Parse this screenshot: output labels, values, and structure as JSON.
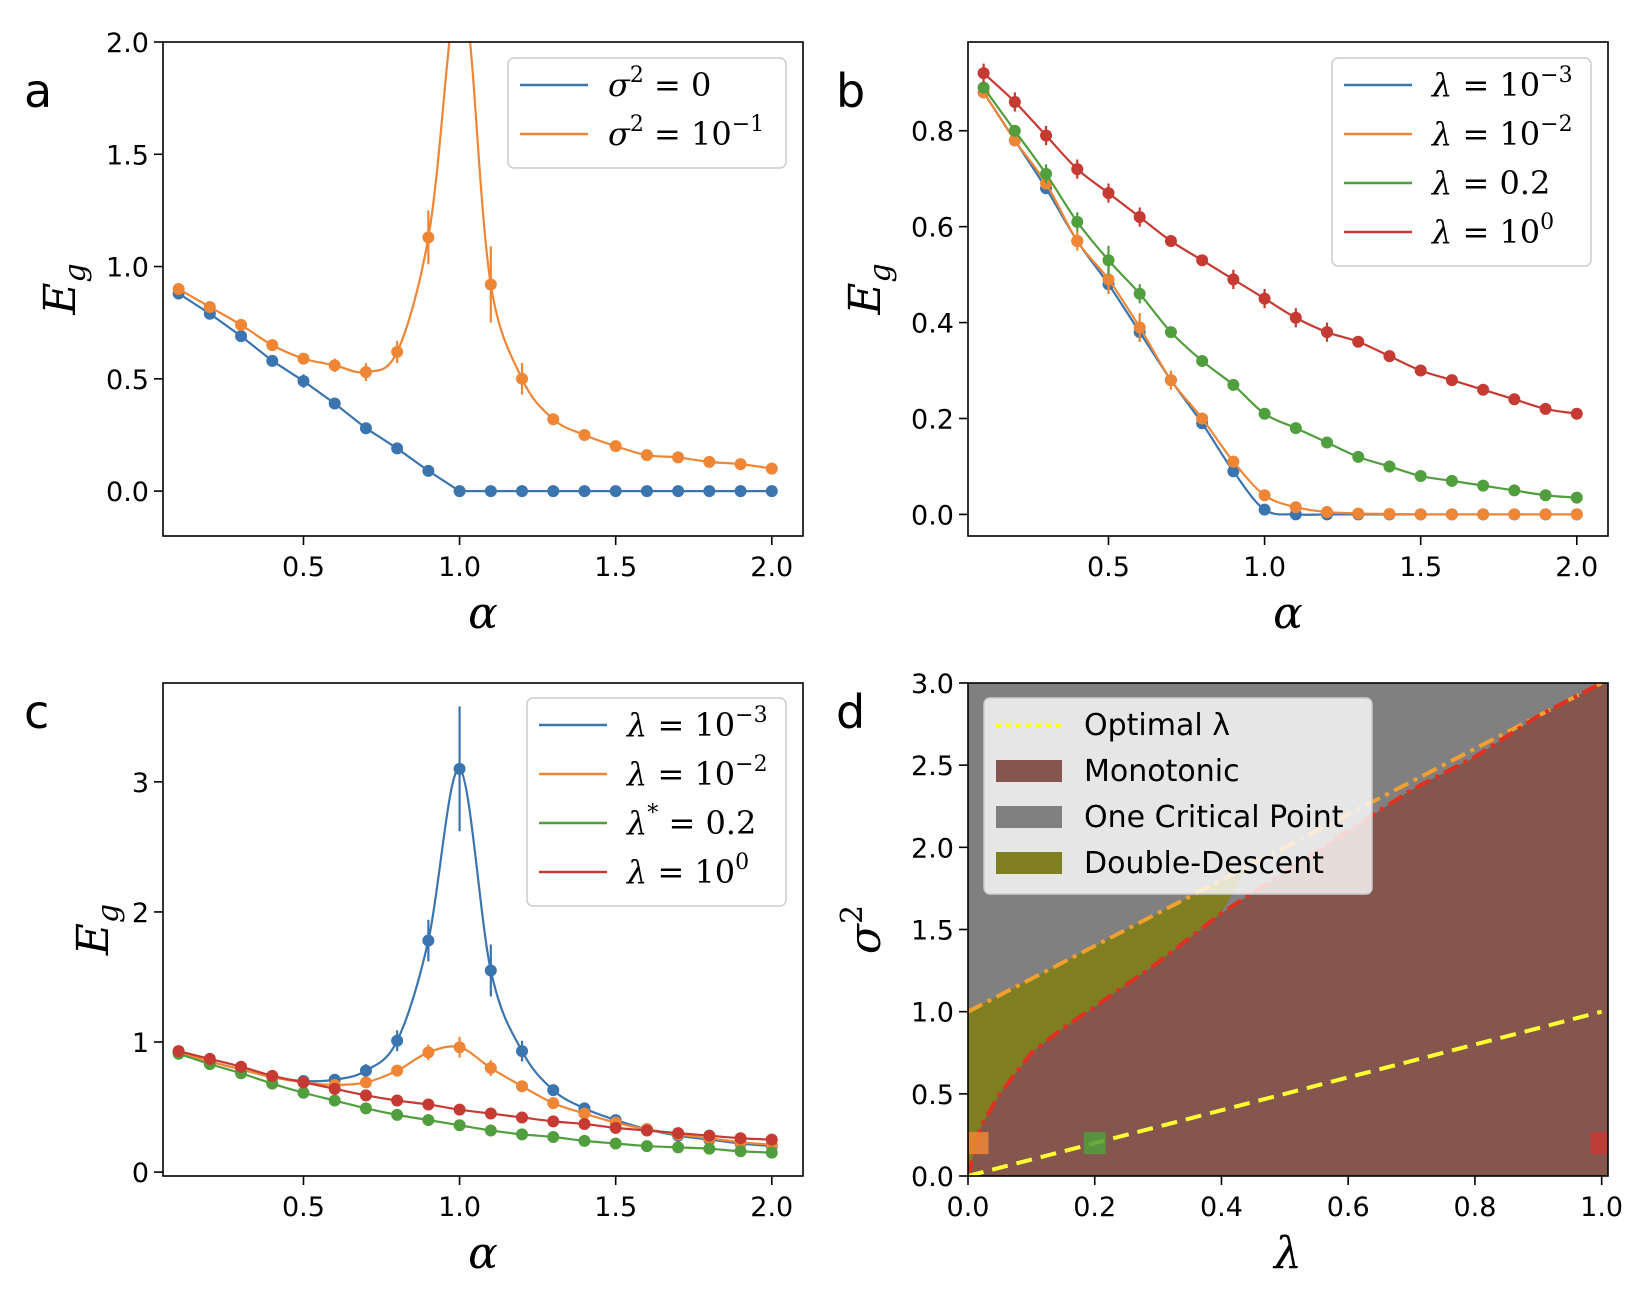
{
  "colors": {
    "blue": "#3b75af",
    "orange": "#ef8636",
    "green": "#519e3e",
    "red": "#c53a32",
    "monotonic": "#84564e",
    "one_critical": "#808080",
    "double_descent": "#7f7f22",
    "optimal": "#ffff33"
  },
  "chart_data": [
    {
      "panel": "a",
      "type": "line",
      "ylabel": "E_g",
      "xlabel": "α",
      "xlim": [
        0.05,
        2.1
      ],
      "ylim": [
        -0.2,
        2.0
      ],
      "xticks": [
        "0.5",
        "1.0",
        "1.5",
        "2.0"
      ],
      "xtick_values": [
        0.5,
        1.0,
        1.5,
        2.0
      ],
      "yticks": [
        "0.0",
        "0.5",
        "1.0",
        "1.5",
        "2.0"
      ],
      "ytick_values": [
        0.0,
        0.5,
        1.0,
        1.5,
        2.0
      ],
      "legend_position": "top-right",
      "series": [
        {
          "legend_base": "σ",
          "legend_sup": "2",
          "legend_rest": " = 0",
          "legend_sup2": "",
          "color": "blue",
          "x": [
            0.1,
            0.2,
            0.3,
            0.4,
            0.5,
            0.6,
            0.7,
            0.8,
            0.9,
            1.0,
            1.1,
            1.2,
            1.3,
            1.4,
            1.5,
            1.6,
            1.7,
            1.8,
            1.9,
            2.0
          ],
          "y": [
            0.88,
            0.79,
            0.69,
            0.58,
            0.49,
            0.39,
            0.28,
            0.19,
            0.09,
            0.0,
            0.0,
            0.0,
            0.0,
            0.0,
            0.0,
            0.0,
            0.0,
            0.0,
            0.0,
            0.0
          ],
          "err": [
            0.01,
            0.01,
            0.01,
            0.01,
            0.03,
            0.01,
            0.01,
            0.01,
            0.01,
            0,
            0,
            0,
            0,
            0,
            0,
            0,
            0,
            0,
            0,
            0
          ]
        },
        {
          "legend_base": "σ",
          "legend_sup": "2",
          "legend_rest": " = 10",
          "legend_sup2": "−1",
          "color": "orange",
          "x": [
            0.1,
            0.2,
            0.3,
            0.4,
            0.5,
            0.6,
            0.7,
            0.8,
            0.9,
            1.1,
            1.2,
            1.3,
            1.4,
            1.5,
            1.6,
            1.7,
            1.8,
            1.9,
            2.0
          ],
          "y": [
            0.9,
            0.82,
            0.74,
            0.65,
            0.59,
            0.56,
            0.53,
            0.62,
            1.13,
            0.92,
            0.5,
            0.32,
            0.25,
            0.2,
            0.16,
            0.15,
            0.13,
            0.12,
            0.1
          ],
          "err": [
            0.01,
            0.01,
            0.01,
            0.01,
            0.02,
            0.03,
            0.04,
            0.05,
            0.12,
            0.17,
            0.07,
            0.01,
            0.01,
            0.01,
            0.01,
            0.01,
            0.01,
            0.01,
            0.01
          ]
        }
      ]
    },
    {
      "panel": "b",
      "type": "line",
      "ylabel": "E_g",
      "xlabel": "α",
      "xlim": [
        0.05,
        2.1
      ],
      "ylim": [
        -0.045,
        0.985
      ],
      "xticks": [
        "0.5",
        "1.0",
        "1.5",
        "2.0"
      ],
      "xtick_values": [
        0.5,
        1.0,
        1.5,
        2.0
      ],
      "yticks": [
        "0.0",
        "0.2",
        "0.4",
        "0.6",
        "0.8"
      ],
      "ytick_values": [
        0.0,
        0.2,
        0.4,
        0.6,
        0.8
      ],
      "legend_position": "top-right",
      "series": [
        {
          "legend_base": "λ",
          "legend_sup": "",
          "legend_rest": " = 10",
          "legend_sup2": "−3",
          "color": "blue",
          "x": [
            0.1,
            0.2,
            0.3,
            0.4,
            0.5,
            0.6,
            0.7,
            0.8,
            0.9,
            1.0,
            1.1,
            1.2,
            1.3,
            1.4,
            1.5,
            1.6,
            1.7,
            1.8,
            1.9,
            2.0
          ],
          "y": [
            0.88,
            0.78,
            0.68,
            0.57,
            0.48,
            0.38,
            0.28,
            0.19,
            0.09,
            0.01,
            0.0,
            0.0,
            0.0,
            0.0,
            0.0,
            0.0,
            0.0,
            0.0,
            0.0,
            0.0
          ],
          "err": [
            0.01,
            0.01,
            0.01,
            0.01,
            0.02,
            0.02,
            0.01,
            0.01,
            0.01,
            0,
            0,
            0,
            0,
            0,
            0,
            0,
            0,
            0,
            0,
            0
          ]
        },
        {
          "legend_base": "λ",
          "legend_sup": "",
          "legend_rest": " = 10",
          "legend_sup2": "−2",
          "color": "orange",
          "x": [
            0.1,
            0.2,
            0.3,
            0.4,
            0.5,
            0.6,
            0.7,
            0.8,
            0.9,
            1.0,
            1.1,
            1.2,
            1.3,
            1.4,
            1.5,
            1.6,
            1.7,
            1.8,
            1.9,
            2.0
          ],
          "y": [
            0.88,
            0.78,
            0.69,
            0.57,
            0.49,
            0.39,
            0.28,
            0.2,
            0.11,
            0.04,
            0.015,
            0.005,
            0.002,
            0.001,
            0.0,
            0.0,
            0.0,
            0.0,
            0.0,
            0.0
          ],
          "err": [
            0.01,
            0.01,
            0.01,
            0.02,
            0.03,
            0.03,
            0.02,
            0.01,
            0.01,
            0.01,
            0,
            0,
            0,
            0,
            0,
            0,
            0,
            0,
            0,
            0
          ]
        },
        {
          "legend_base": "λ",
          "legend_sup": "",
          "legend_rest": " = 0.2",
          "legend_sup2": "",
          "color": "green",
          "x": [
            0.1,
            0.2,
            0.3,
            0.4,
            0.5,
            0.6,
            0.7,
            0.8,
            0.9,
            1.0,
            1.1,
            1.2,
            1.3,
            1.4,
            1.5,
            1.6,
            1.7,
            1.8,
            1.9,
            2.0
          ],
          "y": [
            0.89,
            0.8,
            0.71,
            0.61,
            0.53,
            0.46,
            0.38,
            0.32,
            0.27,
            0.21,
            0.18,
            0.15,
            0.12,
            0.1,
            0.08,
            0.07,
            0.06,
            0.05,
            0.04,
            0.035
          ],
          "err": [
            0.01,
            0.01,
            0.02,
            0.02,
            0.03,
            0.02,
            0.01,
            0.01,
            0.01,
            0.01,
            0.01,
            0.01,
            0.01,
            0.01,
            0.01,
            0.005,
            0.005,
            0.005,
            0.005,
            0.005
          ]
        },
        {
          "legend_base": "λ",
          "legend_sup": "",
          "legend_rest": " = 10",
          "legend_sup2": "0",
          "color": "red",
          "x": [
            0.1,
            0.2,
            0.3,
            0.4,
            0.5,
            0.6,
            0.7,
            0.8,
            0.9,
            1.0,
            1.1,
            1.2,
            1.3,
            1.4,
            1.5,
            1.6,
            1.7,
            1.8,
            1.9,
            2.0
          ],
          "y": [
            0.92,
            0.86,
            0.79,
            0.72,
            0.67,
            0.62,
            0.57,
            0.53,
            0.49,
            0.45,
            0.41,
            0.38,
            0.36,
            0.33,
            0.3,
            0.28,
            0.26,
            0.24,
            0.22,
            0.21
          ],
          "err": [
            0.02,
            0.02,
            0.02,
            0.02,
            0.02,
            0.02,
            0.01,
            0.01,
            0.02,
            0.02,
            0.02,
            0.02,
            0.01,
            0.01,
            0.01,
            0.01,
            0.01,
            0.01,
            0.01,
            0.01
          ]
        }
      ]
    },
    {
      "panel": "c",
      "type": "line",
      "ylabel": "E_g",
      "xlabel": "α",
      "xlim": [
        0.05,
        2.1
      ],
      "ylim": [
        -0.03,
        3.76
      ],
      "xticks": [
        "0.5",
        "1.0",
        "1.5",
        "2.0"
      ],
      "xtick_values": [
        0.5,
        1.0,
        1.5,
        2.0
      ],
      "yticks": [
        "0",
        "1",
        "2",
        "3"
      ],
      "ytick_values": [
        0,
        1,
        2,
        3
      ],
      "legend_position": "top-right",
      "series": [
        {
          "legend_base": "λ",
          "legend_sup": "",
          "legend_rest": " = 10",
          "legend_sup2": "−3",
          "color": "blue",
          "x": [
            0.1,
            0.2,
            0.3,
            0.4,
            0.5,
            0.6,
            0.7,
            0.8,
            0.9,
            1.0,
            1.1,
            1.2,
            1.3,
            1.4,
            1.5,
            1.6,
            1.7,
            1.8,
            1.9,
            2.0
          ],
          "y": [
            0.92,
            0.85,
            0.79,
            0.73,
            0.7,
            0.71,
            0.78,
            1.01,
            1.78,
            3.1,
            1.55,
            0.93,
            0.63,
            0.49,
            0.4,
            0.33,
            0.28,
            0.25,
            0.22,
            0.2
          ],
          "err": [
            0.01,
            0.01,
            0.01,
            0.01,
            0.02,
            0.03,
            0.05,
            0.08,
            0.16,
            0.48,
            0.2,
            0.08,
            0.02,
            0.02,
            0.01,
            0.01,
            0.01,
            0.01,
            0.01,
            0.01
          ]
        },
        {
          "legend_base": "λ",
          "legend_sup": "",
          "legend_rest": " = 10",
          "legend_sup2": "−2",
          "color": "orange",
          "x": [
            0.1,
            0.2,
            0.3,
            0.4,
            0.5,
            0.6,
            0.7,
            0.8,
            0.9,
            1.0,
            1.1,
            1.2,
            1.3,
            1.4,
            1.5,
            1.6,
            1.7,
            1.8,
            1.9,
            2.0
          ],
          "y": [
            0.92,
            0.85,
            0.79,
            0.73,
            0.69,
            0.67,
            0.69,
            0.78,
            0.92,
            0.96,
            0.8,
            0.66,
            0.53,
            0.45,
            0.38,
            0.33,
            0.29,
            0.26,
            0.23,
            0.21
          ],
          "err": [
            0.01,
            0.01,
            0.01,
            0.01,
            0.01,
            0.02,
            0.03,
            0.04,
            0.06,
            0.08,
            0.06,
            0.04,
            0.02,
            0.01,
            0.01,
            0.01,
            0.01,
            0.01,
            0.01,
            0.01
          ]
        },
        {
          "legend_base": "λ",
          "legend_sup": "*",
          "legend_rest": " = 0.2",
          "legend_sup2": "",
          "color": "green",
          "x": [
            0.1,
            0.2,
            0.3,
            0.4,
            0.5,
            0.6,
            0.7,
            0.8,
            0.9,
            1.0,
            1.1,
            1.2,
            1.3,
            1.4,
            1.5,
            1.6,
            1.7,
            1.8,
            1.9,
            2.0
          ],
          "y": [
            0.91,
            0.83,
            0.76,
            0.68,
            0.61,
            0.55,
            0.49,
            0.44,
            0.4,
            0.36,
            0.32,
            0.29,
            0.27,
            0.24,
            0.22,
            0.2,
            0.19,
            0.18,
            0.16,
            0.15
          ],
          "err": [
            0.01,
            0.01,
            0.01,
            0.01,
            0.01,
            0.01,
            0.01,
            0.01,
            0.01,
            0.01,
            0.01,
            0.01,
            0.01,
            0.01,
            0.01,
            0.01,
            0.01,
            0.01,
            0.01,
            0.01
          ]
        },
        {
          "legend_base": "λ",
          "legend_sup": "",
          "legend_rest": " = 10",
          "legend_sup2": "0",
          "color": "red",
          "x": [
            0.1,
            0.2,
            0.3,
            0.4,
            0.5,
            0.6,
            0.7,
            0.8,
            0.9,
            1.0,
            1.1,
            1.2,
            1.3,
            1.4,
            1.5,
            1.6,
            1.7,
            1.8,
            1.9,
            2.0
          ],
          "y": [
            0.93,
            0.87,
            0.81,
            0.74,
            0.69,
            0.64,
            0.59,
            0.55,
            0.52,
            0.48,
            0.45,
            0.42,
            0.39,
            0.37,
            0.34,
            0.32,
            0.3,
            0.28,
            0.26,
            0.25
          ],
          "err": [
            0.01,
            0.01,
            0.01,
            0.01,
            0.01,
            0.01,
            0.01,
            0.01,
            0.01,
            0.01,
            0.01,
            0.01,
            0.01,
            0.01,
            0.01,
            0.01,
            0.01,
            0.01,
            0.01,
            0.01
          ]
        }
      ]
    },
    {
      "panel": "d",
      "type": "area",
      "ylabel": "σ",
      "ylabel_sup": "2",
      "xlabel": "λ",
      "xlim": [
        0.0,
        1.01
      ],
      "ylim": [
        0.0,
        3.0
      ],
      "xticks": [
        "0.0",
        "0.2",
        "0.4",
        "0.6",
        "0.8",
        "1.0"
      ],
      "xtick_values": [
        0.0,
        0.2,
        0.4,
        0.6,
        0.8,
        1.0
      ],
      "yticks": [
        "0.0",
        "0.5",
        "1.0",
        "1.5",
        "2.0",
        "2.5",
        "3.0"
      ],
      "ytick_values": [
        0.0,
        0.5,
        1.0,
        1.5,
        2.0,
        2.5,
        3.0
      ],
      "legend_position": "top-left",
      "legend": [
        {
          "label": "Optimal λ",
          "kind": "line",
          "color": "optimal"
        },
        {
          "label": "Monotonic",
          "kind": "patch",
          "color": "monotonic"
        },
        {
          "label": "One Critical Point",
          "kind": "patch",
          "color": "one_critical"
        },
        {
          "label": "Double-Descent",
          "kind": "patch",
          "color": "double_descent"
        }
      ],
      "optimal_line": {
        "x": [
          0.0,
          1.0
        ],
        "y": [
          0.0,
          1.0
        ]
      },
      "upper_boundary": {
        "x": [
          0.0,
          1.0
        ],
        "y": [
          1.0,
          3.0
        ]
      },
      "lower_boundary": {
        "x": [
          0.0,
          0.02,
          0.05,
          0.1,
          0.15,
          0.2,
          0.3,
          0.4,
          0.5,
          0.6,
          0.7,
          0.8,
          0.9,
          1.0
        ],
        "y": [
          0.0,
          0.3,
          0.5,
          0.75,
          0.9,
          1.03,
          1.3,
          1.6,
          1.85,
          2.1,
          2.35,
          2.55,
          2.8,
          3.0
        ]
      },
      "markers": [
        {
          "x": 0.015,
          "y": 0.2,
          "color": "orange"
        },
        {
          "x": 0.2,
          "y": 0.2,
          "color": "green"
        },
        {
          "x": 1.0,
          "y": 0.2,
          "color": "red"
        }
      ]
    }
  ],
  "panel_letters": [
    "a",
    "b",
    "c",
    "d"
  ]
}
